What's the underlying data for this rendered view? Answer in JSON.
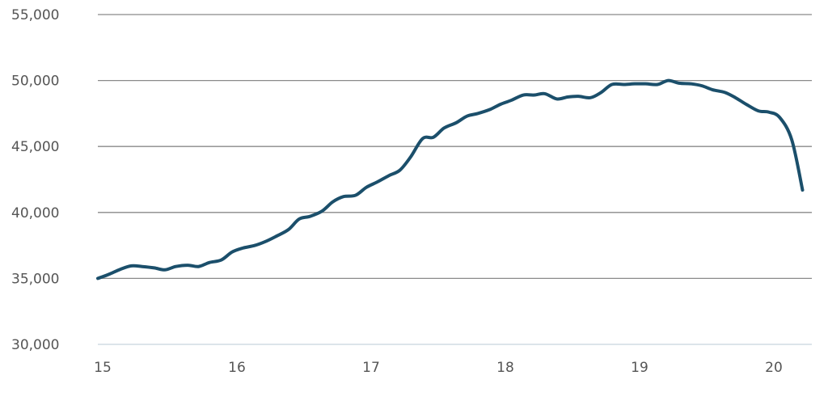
{
  "chart_data": {
    "type": "line",
    "title": "",
    "xlabel": "",
    "ylabel": "",
    "xlim": [
      15,
      20.25
    ],
    "ylim": [
      30000,
      55000
    ],
    "x_ticks": [
      15,
      16,
      17,
      18,
      19,
      20
    ],
    "x_tick_labels": [
      "15",
      "16",
      "17",
      "18",
      "19",
      "20"
    ],
    "y_ticks": [
      30000,
      35000,
      40000,
      45000,
      50000,
      55000
    ],
    "y_tick_labels": [
      "30,000",
      "35,000",
      "40,000",
      "45,000",
      "50,000",
      "55,000"
    ],
    "grid": "horizontal",
    "line_color": "#1b4f6b",
    "series": [
      {
        "x": [
          15.0,
          15.08,
          15.17,
          15.25,
          15.33,
          15.42,
          15.5,
          15.58,
          15.67,
          15.75,
          15.83,
          15.92,
          16.0,
          16.08,
          16.17,
          16.25,
          16.33,
          16.42,
          16.5,
          16.58,
          16.67,
          16.75,
          16.83,
          16.92,
          17.0,
          17.08,
          17.17,
          17.25,
          17.33,
          17.42,
          17.5,
          17.58,
          17.67,
          17.75,
          17.83,
          17.92,
          18.0,
          18.08,
          18.17,
          18.25,
          18.33,
          18.42,
          18.5,
          18.58,
          18.67,
          18.75,
          18.83,
          18.92,
          19.0,
          19.08,
          19.17,
          19.25,
          19.33,
          19.42,
          19.5,
          19.58,
          19.67,
          19.75,
          19.83,
          19.92,
          20.0,
          20.08,
          20.17,
          20.25
        ],
        "values": [
          35000,
          35300,
          35700,
          35950,
          35900,
          35800,
          35650,
          35900,
          36000,
          35900,
          36200,
          36400,
          37000,
          37300,
          37500,
          37800,
          38200,
          38700,
          39500,
          39700,
          40100,
          40800,
          41200,
          41300,
          41900,
          42300,
          42800,
          43200,
          44200,
          45600,
          45700,
          46400,
          46800,
          47300,
          47500,
          47800,
          48200,
          48500,
          48900,
          48900,
          49000,
          48600,
          48750,
          48800,
          48700,
          49100,
          49700,
          49700,
          49750,
          49750,
          49700,
          50000,
          49800,
          49750,
          49600,
          49300,
          49100,
          48700,
          48200,
          47700,
          47600,
          47200,
          45500,
          41700
        ]
      }
    ]
  }
}
